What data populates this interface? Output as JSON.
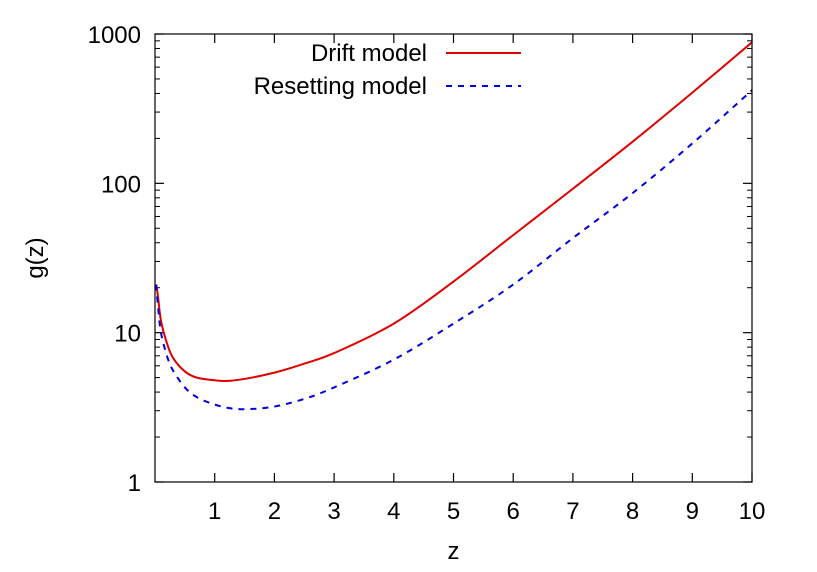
{
  "chart_data": {
    "type": "line",
    "title": "",
    "xlabel": "z",
    "ylabel": "g(z)",
    "xlim": [
      0,
      10
    ],
    "ylim": [
      1,
      1000
    ],
    "yscale": "log",
    "grid": false,
    "legend_position": "top-right",
    "x_ticks": [
      1,
      2,
      3,
      4,
      5,
      6,
      7,
      8,
      9,
      10
    ],
    "x_tick_labels": [
      "1",
      "2",
      "3",
      "4",
      "5",
      "6",
      "7",
      "8",
      "9",
      "10"
    ],
    "y_ticks": [
      1,
      10,
      100,
      1000
    ],
    "y_tick_labels": [
      "1",
      "10",
      "100",
      "1000"
    ],
    "series": [
      {
        "name": "Drift model",
        "color": "#e00000",
        "style": "solid",
        "x": [
          0.02,
          0.05,
          0.1,
          0.2,
          0.3,
          0.5,
          0.7,
          1.0,
          1.2,
          1.5,
          2.0,
          2.5,
          3.0,
          4.0,
          5.0,
          6.0,
          7.0,
          8.0,
          9.0,
          10.0
        ],
        "y": [
          21,
          17.5,
          12,
          8.5,
          6.8,
          5.5,
          5.0,
          4.8,
          4.75,
          4.9,
          5.4,
          6.2,
          7.3,
          11.5,
          22,
          45,
          92,
          190,
          405,
          880
        ]
      },
      {
        "name": "Resetting model",
        "color": "#0000e0",
        "style": "dashed",
        "x": [
          0.02,
          0.05,
          0.1,
          0.2,
          0.3,
          0.5,
          0.7,
          1.0,
          1.3,
          1.6,
          2.0,
          2.5,
          3.0,
          4.0,
          5.0,
          6.0,
          7.0,
          8.0,
          9.0,
          10.0
        ],
        "y": [
          21,
          15,
          10,
          7.0,
          5.6,
          4.3,
          3.7,
          3.3,
          3.1,
          3.08,
          3.2,
          3.6,
          4.3,
          6.6,
          11.5,
          21,
          43,
          86,
          185,
          420
        ]
      }
    ]
  }
}
